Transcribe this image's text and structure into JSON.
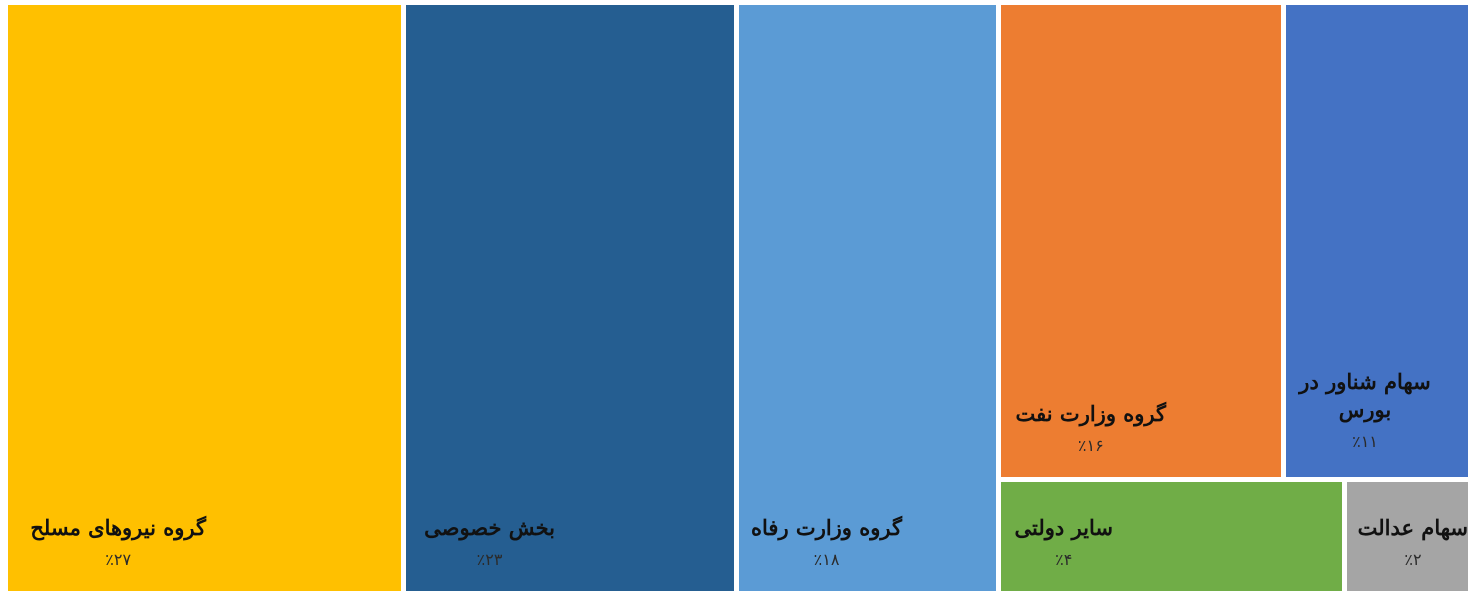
{
  "chart_data": {
    "type": "treemap",
    "title": "",
    "items": [
      {
        "label": "گروه نیروهای مسلح",
        "value": 27,
        "value_label": "٪۲۷",
        "color": "#FFC000"
      },
      {
        "label": "بخش خصوصی",
        "value": 23,
        "value_label": "٪۲۳",
        "color": "#255E91"
      },
      {
        "label": "گروه وزارت رفاه",
        "value": 18,
        "value_label": "٪۱۸",
        "color": "#5B9BD5"
      },
      {
        "label": "گروه وزارت نفت",
        "value": 16,
        "value_label": "٪۱۶",
        "color": "#ED7D31"
      },
      {
        "label": "سهام شناور در بورس",
        "value": 11,
        "value_label": "٪۱۱",
        "color": "#4472C4"
      },
      {
        "label": "سایر دولتی",
        "value": 4,
        "value_label": "٪۴",
        "color": "#70AD47"
      },
      {
        "label": "سهام عدالت",
        "value": 2,
        "value_label": "٪۲",
        "color": "#A5A5A5"
      }
    ]
  }
}
